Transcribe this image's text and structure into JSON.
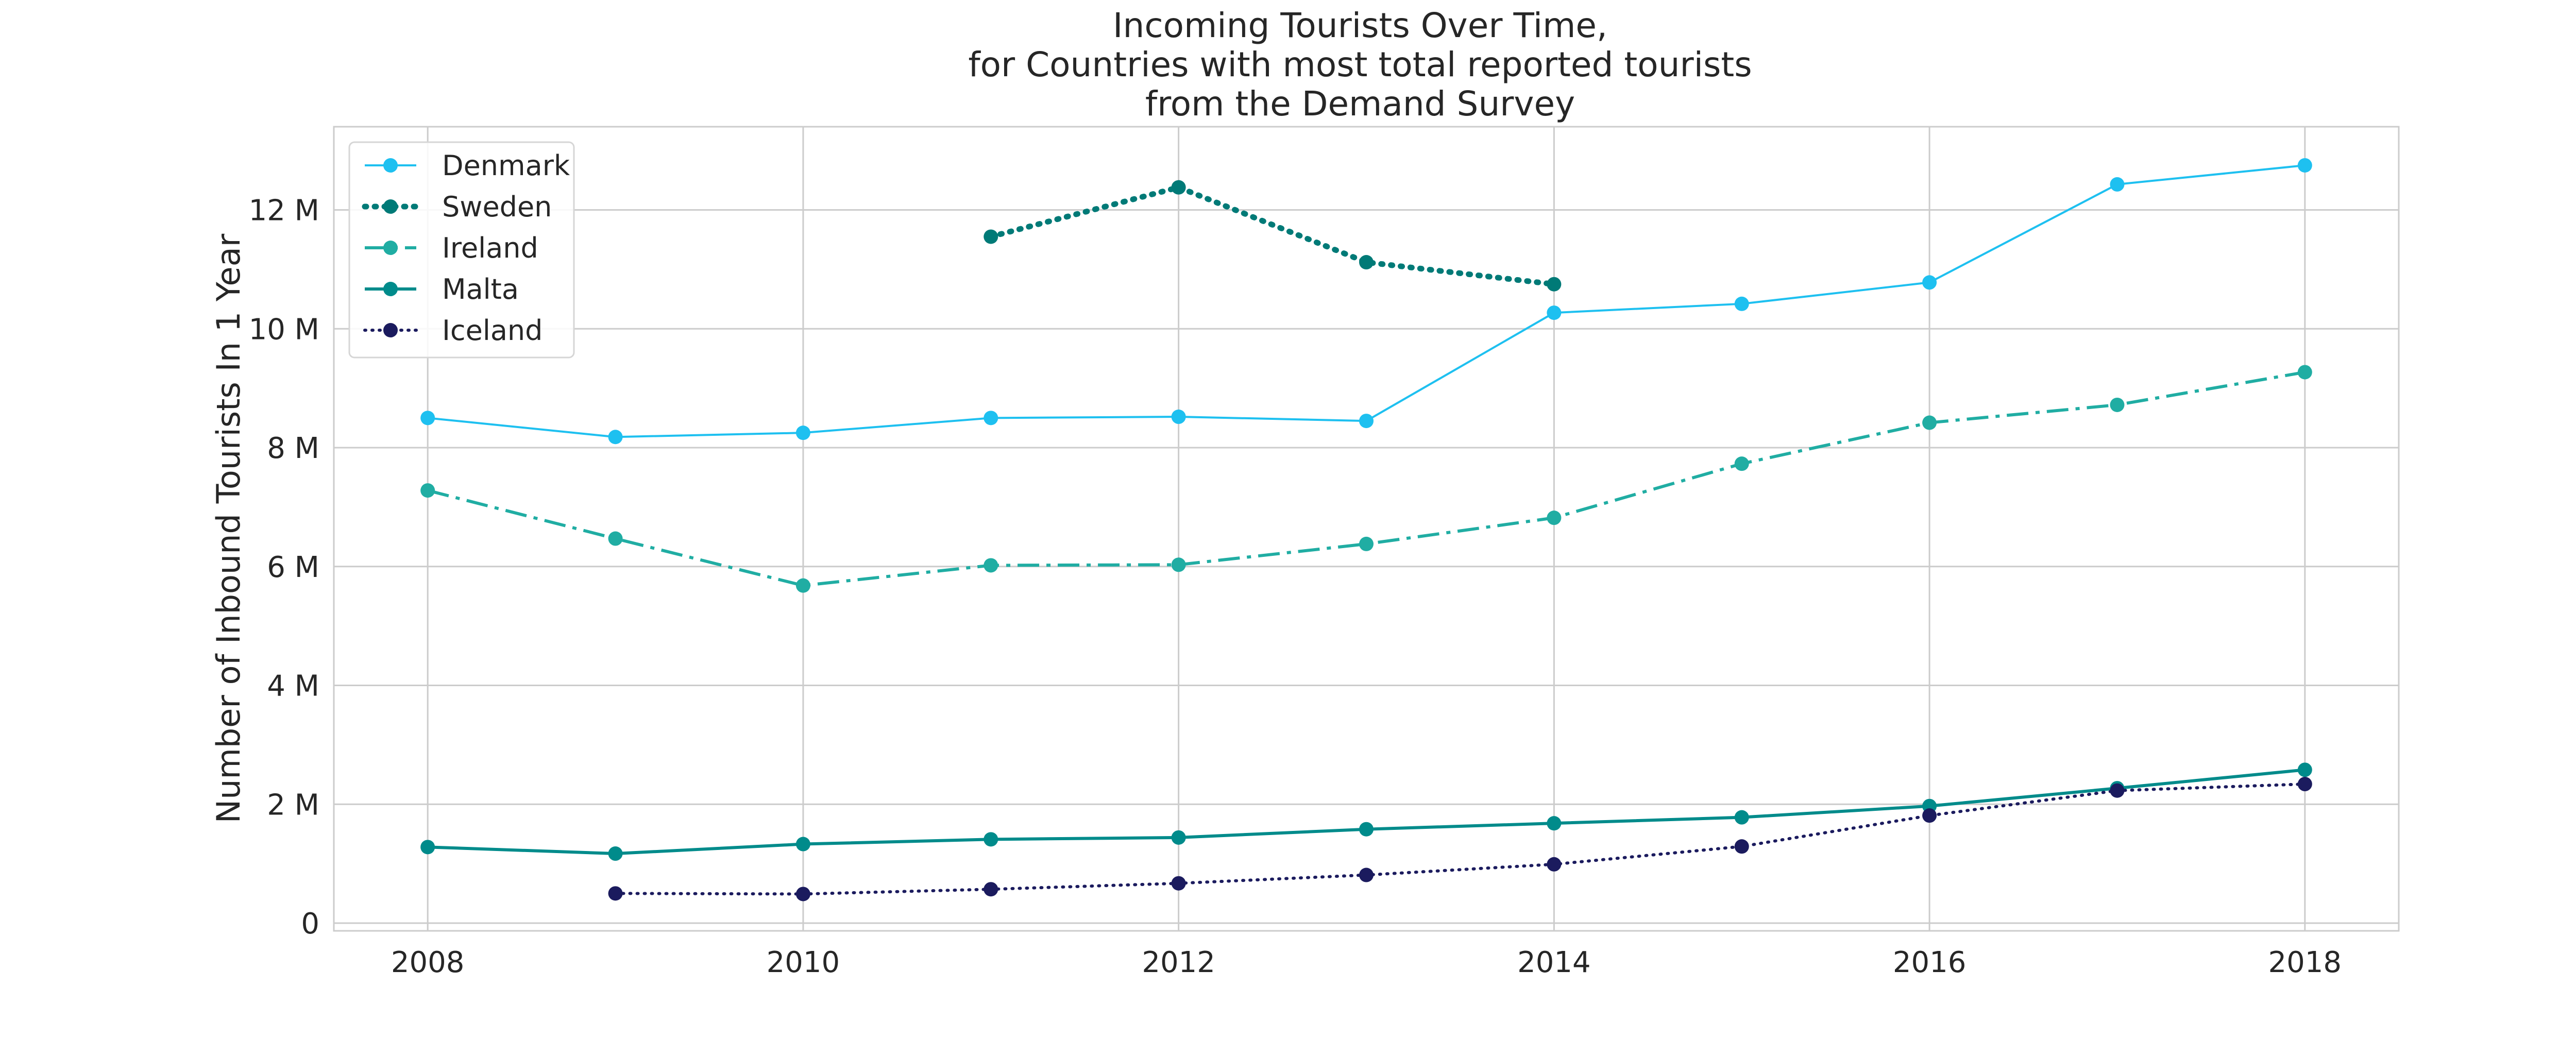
{
  "chart_data": {
    "type": "line",
    "title": [
      "Incoming Tourists Over Time,",
      "for Countries with most total reported tourists",
      "from the Demand Survey"
    ],
    "xlabel": "",
    "ylabel": "Number of Inbound Tourists In 1 Year",
    "xlim": [
      2007.5,
      2018.5
    ],
    "ylim": [
      -0.13,
      13.4
    ],
    "xticks": [
      2008,
      2010,
      2012,
      2014,
      2016,
      2018
    ],
    "xtick_labels": [
      "2008",
      "2010",
      "2012",
      "2014",
      "2016",
      "2018"
    ],
    "yticks": [
      0,
      2,
      4,
      6,
      8,
      10,
      12
    ],
    "ytick_labels": [
      "0",
      "2 M",
      "4 M",
      "6 M",
      "8 M",
      "10 M",
      "12 M"
    ],
    "grid": true,
    "legend_position": "top-left",
    "series": [
      {
        "name": "Denmark",
        "color": "#1ec0f0",
        "line_style": "solid",
        "line_width": "thin",
        "x": [
          2008,
          2009,
          2010,
          2011,
          2012,
          2013,
          2014,
          2015,
          2016,
          2017,
          2018
        ],
        "y": [
          8.5,
          8.18,
          8.25,
          8.5,
          8.52,
          8.45,
          10.27,
          10.42,
          10.78,
          12.43,
          12.75
        ]
      },
      {
        "name": "Sweden",
        "color": "#007a77",
        "line_style": "dotted",
        "line_width": "thick",
        "x": [
          2011,
          2012,
          2013,
          2014
        ],
        "y": [
          11.55,
          12.38,
          11.12,
          10.75
        ]
      },
      {
        "name": "Ireland",
        "color": "#20ada3",
        "line_style": "dashdot",
        "line_width": "medium",
        "x": [
          2008,
          2009,
          2010,
          2011,
          2012,
          2013,
          2014,
          2015,
          2016,
          2017,
          2018
        ],
        "y": [
          7.28,
          6.47,
          5.68,
          6.02,
          6.03,
          6.38,
          6.82,
          7.73,
          8.42,
          8.72,
          9.27
        ]
      },
      {
        "name": "Malta",
        "color": "#008b8b",
        "line_style": "solid",
        "line_width": "medium",
        "x": [
          2008,
          2009,
          2010,
          2011,
          2012,
          2013,
          2014,
          2015,
          2016,
          2017,
          2018
        ],
        "y": [
          1.28,
          1.17,
          1.33,
          1.41,
          1.44,
          1.58,
          1.68,
          1.78,
          1.97,
          2.27,
          2.58
        ]
      },
      {
        "name": "Iceland",
        "color": "#1b1b5e",
        "line_style": "dotted",
        "line_width": "medium",
        "x": [
          2009,
          2010,
          2011,
          2012,
          2013,
          2014,
          2015,
          2016,
          2017,
          2018
        ],
        "y": [
          0.5,
          0.49,
          0.57,
          0.67,
          0.81,
          0.99,
          1.29,
          1.81,
          2.23,
          2.34
        ]
      }
    ]
  }
}
